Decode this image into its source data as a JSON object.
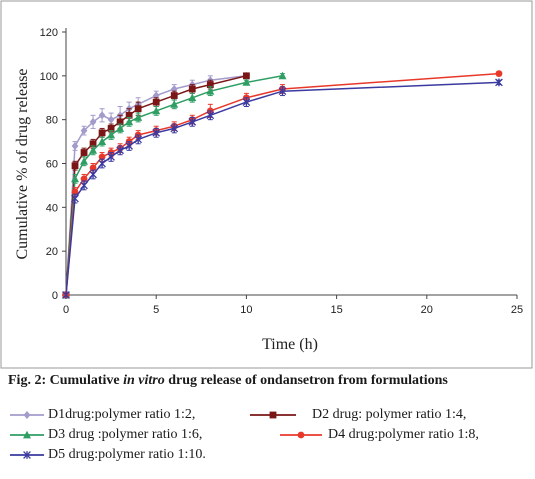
{
  "caption": {
    "prefix": "Fig. 2: Cumulative ",
    "italic": "in vitro",
    "suffix": " drug release of ondansetron from formulations"
  },
  "chart_data": {
    "type": "line",
    "xlabel": "Time  (h)",
    "ylabel": "Cumulative % of drug  release",
    "xlim": [
      0,
      25
    ],
    "ylim": [
      0,
      120
    ],
    "xticks": [
      0,
      5,
      10,
      15,
      20,
      25
    ],
    "yticks": [
      0,
      20,
      40,
      60,
      80,
      100,
      120
    ],
    "grid": false,
    "legend_position": "below",
    "series": [
      {
        "name": "D1drug:polymer ratio 1:2,",
        "color": "#a29bcc",
        "marker": "diamond",
        "x": [
          0,
          0.5,
          1,
          1.5,
          2,
          2.5,
          3,
          3.5,
          4,
          5,
          6,
          7,
          8,
          10
        ],
        "y": [
          0,
          68,
          75,
          79,
          82,
          80,
          82,
          85,
          87,
          91,
          94,
          96,
          98,
          100
        ],
        "err": [
          0,
          2,
          2,
          3,
          3,
          3,
          4,
          3,
          3,
          2,
          2,
          2,
          2,
          1
        ]
      },
      {
        "name": "D2 drug: polymer ratio 1:4,",
        "color": "#7a1616",
        "marker": "square",
        "x": [
          0,
          0.5,
          1,
          1.5,
          2,
          2.5,
          3,
          3.5,
          4,
          5,
          6,
          7,
          8,
          10
        ],
        "y": [
          0,
          59,
          65,
          69,
          74,
          76,
          79,
          82,
          85,
          88,
          91,
          94,
          96,
          100
        ],
        "err": [
          0,
          2,
          2,
          2,
          2,
          2,
          3,
          3,
          3,
          2,
          2,
          2,
          2,
          1
        ]
      },
      {
        "name": "D3 drug :polymer ratio 1:6,",
        "color": "#2e9e63",
        "marker": "triangle",
        "x": [
          0,
          0.5,
          1,
          1.5,
          2,
          2.5,
          3,
          3.5,
          4,
          5,
          6,
          7,
          8,
          10,
          12
        ],
        "y": [
          0,
          53,
          61,
          66,
          70,
          73,
          76,
          79,
          81,
          84,
          87,
          90,
          93,
          97,
          100
        ],
        "err": [
          0,
          2,
          2,
          2,
          2,
          2,
          2,
          2,
          2,
          2,
          2,
          2,
          2,
          1,
          1
        ]
      },
      {
        "name": "D4 drug:polymer ratio 1:8,",
        "color": "#e8382a",
        "marker": "circle",
        "x": [
          0,
          0.5,
          1,
          1.5,
          2,
          2.5,
          3,
          3.5,
          4,
          5,
          6,
          7,
          8,
          10,
          12,
          24
        ],
        "y": [
          0,
          47,
          53,
          58,
          63,
          65,
          67,
          70,
          73,
          75,
          77,
          80,
          84,
          90,
          94,
          101
        ],
        "err": [
          0,
          2,
          2,
          2,
          2,
          2,
          2,
          2,
          2,
          2,
          2,
          2,
          3,
          2,
          2,
          1
        ]
      },
      {
        "name": "D5 drug:polymer ratio 1:10.",
        "color": "#3a3aa0",
        "marker": "star",
        "x": [
          0,
          0.5,
          1,
          1.5,
          2,
          2.5,
          3,
          3.5,
          4,
          5,
          6,
          7,
          8,
          10,
          12,
          24
        ],
        "y": [
          0,
          44,
          50,
          55,
          60,
          63,
          66,
          68,
          71,
          74,
          76,
          79,
          82,
          88,
          93,
          97
        ],
        "err": [
          0,
          2,
          2,
          2,
          2,
          2,
          2,
          2,
          2,
          2,
          2,
          2,
          2,
          2,
          2,
          1
        ]
      }
    ]
  }
}
